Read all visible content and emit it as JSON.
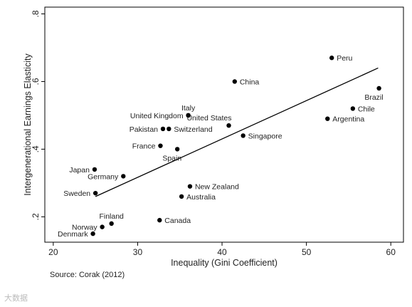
{
  "chart_data": {
    "type": "scatter",
    "xlabel": "Inequality (Gini Coefficient)",
    "ylabel": "Intergenerational Earnings Elasticity",
    "xlim": [
      19,
      61.5
    ],
    "ylim": [
      0.125,
      0.82
    ],
    "xticks": [
      20,
      30,
      40,
      50,
      60
    ],
    "yticks": [
      0.2,
      0.4,
      0.6,
      0.8
    ],
    "ytick_labels": [
      ".2",
      ".4",
      ".6",
      ".8"
    ],
    "grid": false,
    "points": [
      {
        "label": "Peru",
        "x": 53.0,
        "y": 0.67,
        "pos": "right"
      },
      {
        "label": "China",
        "x": 41.5,
        "y": 0.6,
        "pos": "right"
      },
      {
        "label": "Brazil",
        "x": 58.6,
        "y": 0.58,
        "pos": "below-left"
      },
      {
        "label": "Chile",
        "x": 55.5,
        "y": 0.52,
        "pos": "right"
      },
      {
        "label": "Argentina",
        "x": 52.5,
        "y": 0.49,
        "pos": "right"
      },
      {
        "label": "Italy",
        "x": 36.0,
        "y": 0.5,
        "pos": "above"
      },
      {
        "label": "United Kingdom",
        "x": 36.0,
        "y": 0.5,
        "pos": "left"
      },
      {
        "label": "United States",
        "x": 40.8,
        "y": 0.47,
        "pos": "above-left"
      },
      {
        "label": "Pakistan",
        "x": 33.0,
        "y": 0.46,
        "pos": "left"
      },
      {
        "label": "Switzerland",
        "x": 33.7,
        "y": 0.46,
        "pos": "right"
      },
      {
        "label": "Singapore",
        "x": 42.5,
        "y": 0.44,
        "pos": "right"
      },
      {
        "label": "France",
        "x": 32.7,
        "y": 0.41,
        "pos": "left"
      },
      {
        "label": "Spain",
        "x": 34.7,
        "y": 0.4,
        "pos": "below-left"
      },
      {
        "label": "Japan",
        "x": 24.9,
        "y": 0.34,
        "pos": "left"
      },
      {
        "label": "Germany",
        "x": 28.3,
        "y": 0.32,
        "pos": "left"
      },
      {
        "label": "New Zealand",
        "x": 36.2,
        "y": 0.29,
        "pos": "right"
      },
      {
        "label": "Sweden",
        "x": 25.0,
        "y": 0.27,
        "pos": "left"
      },
      {
        "label": "Australia",
        "x": 35.2,
        "y": 0.26,
        "pos": "right"
      },
      {
        "label": "Canada",
        "x": 32.6,
        "y": 0.19,
        "pos": "right"
      },
      {
        "label": "Finland",
        "x": 26.9,
        "y": 0.18,
        "pos": "above"
      },
      {
        "label": "Norway",
        "x": 25.8,
        "y": 0.17,
        "pos": "left"
      },
      {
        "label": "Denmark",
        "x": 24.7,
        "y": 0.15,
        "pos": "left"
      }
    ],
    "fit_line": {
      "x": [
        25.0,
        58.5
      ],
      "y": [
        0.26,
        0.64
      ]
    }
  },
  "source": "Source: Corak (2012)",
  "watermark": "大数据"
}
